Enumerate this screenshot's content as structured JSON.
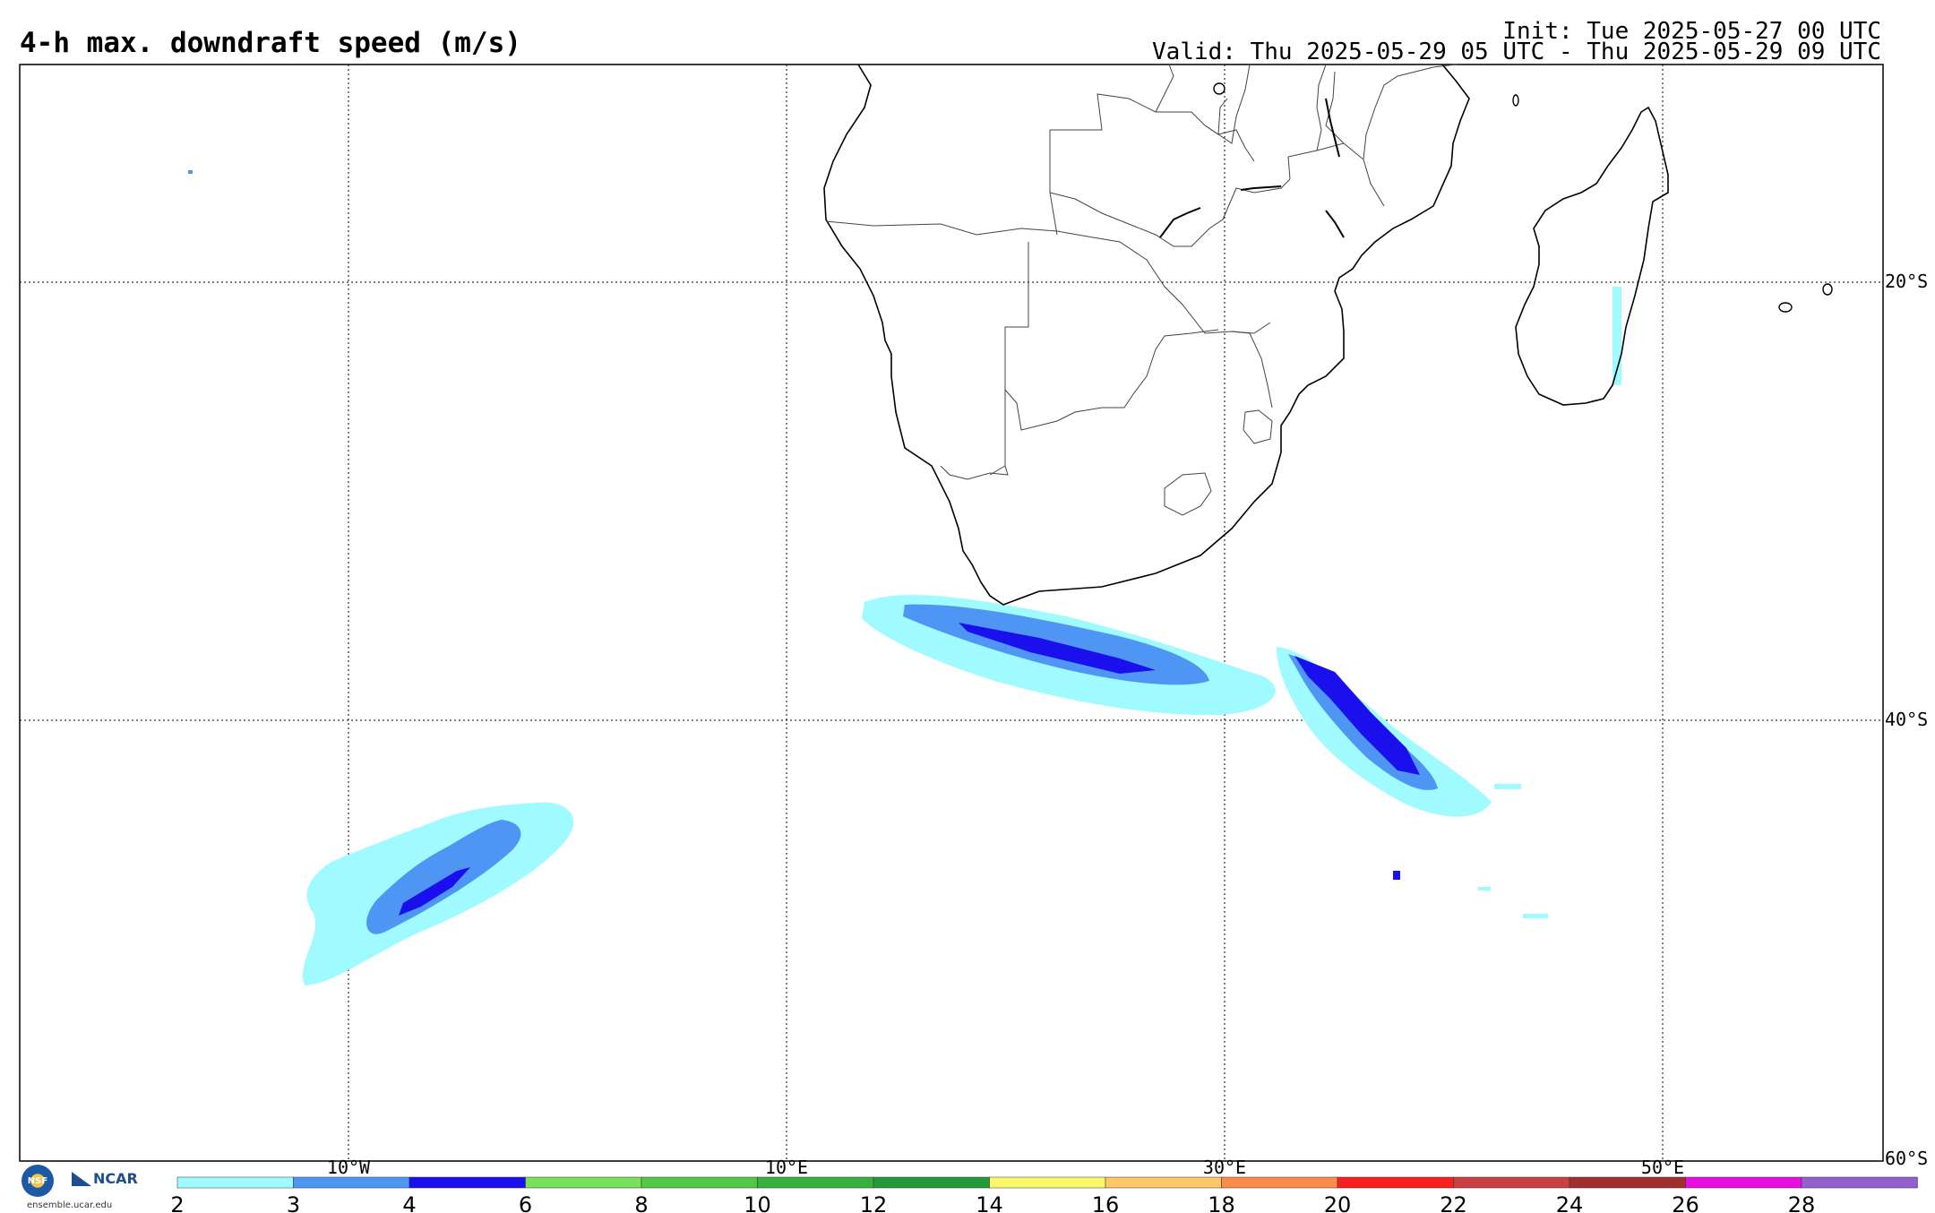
{
  "title": "4-h max. downdraft speed (m/s)",
  "init": "Init: Tue 2025-05-27 00 UTC",
  "valid": "Valid: Thu 2025-05-29 05 UTC - Thu 2025-05-29 09 UTC",
  "map": {
    "longitude_labels": [
      "10°W",
      "10°E",
      "30°E",
      "50°E"
    ],
    "latitude_labels": [
      "20°S",
      "40°S",
      "60°S"
    ],
    "grid": true
  },
  "colorbar": {
    "tick_labels": [
      "2",
      "3",
      "4",
      "6",
      "8",
      "10",
      "12",
      "14",
      "16",
      "18",
      "20",
      "22",
      "24",
      "26",
      "28"
    ],
    "colors": [
      "#9ffbff",
      "#4f96f4",
      "#1a10ee",
      "#78e05a",
      "#52c84a",
      "#38b040",
      "#259a3c",
      "#f8f86a",
      "#fcc86a",
      "#fc8c4a",
      "#f82020",
      "#c84040",
      "#a03030",
      "#e810e0",
      "#9460d0"
    ]
  },
  "logo": {
    "nsf": "NSF",
    "ncar": "NCAR",
    "url": "ensemble.ucar.edu"
  },
  "legend_levels": {
    "light": "#9ffbff",
    "medium": "#4f96f4",
    "strong": "#1a10ee"
  }
}
